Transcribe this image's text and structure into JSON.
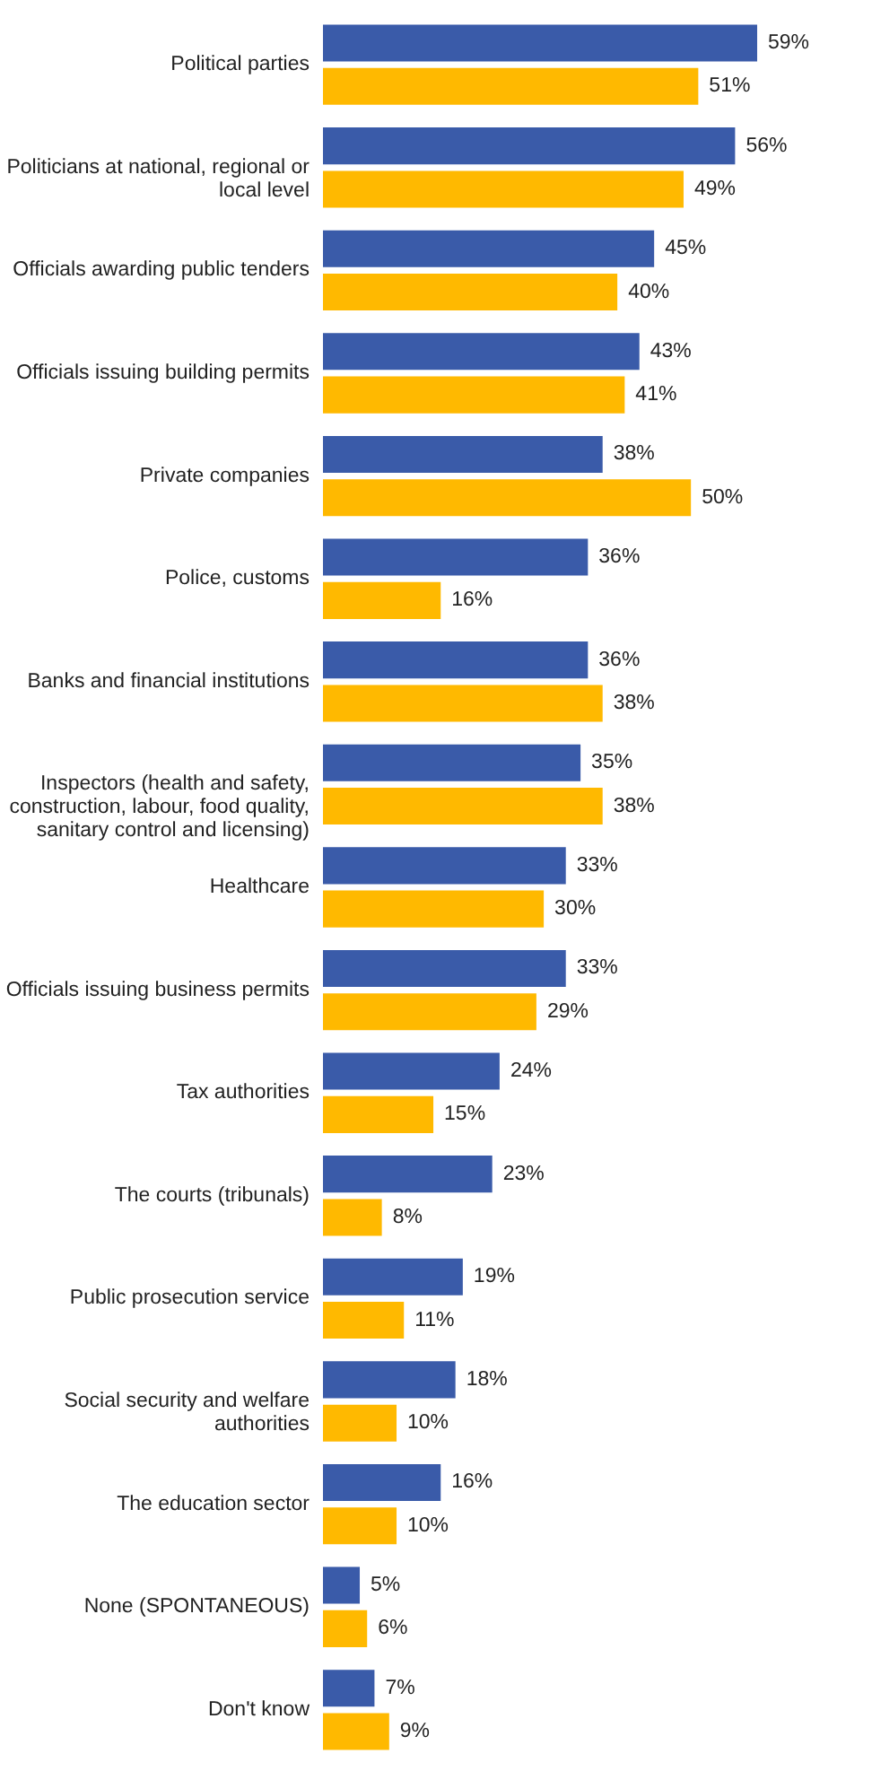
{
  "chart_data": {
    "type": "bar",
    "orientation": "horizontal",
    "categories": [
      "Political parties",
      "Politicians at national, regional or local level",
      "Officials awarding public tenders",
      "Officials issuing building permits",
      "Private companies",
      "Police, customs",
      "Banks and financial institutions",
      "Inspectors (health and safety, construction, labour, food quality, sanitary control and licensing)",
      "Healthcare",
      "Officials issuing business permits",
      "Tax authorities",
      "The courts (tribunals)",
      "Public prosecution service",
      "Social security and welfare authorities",
      "The education sector",
      "None (SPONTANEOUS)",
      "Don't know"
    ],
    "series": [
      {
        "color": "#3a5ba9",
        "values": [
          59,
          56,
          45,
          43,
          38,
          36,
          36,
          35,
          33,
          33,
          24,
          23,
          19,
          18,
          16,
          5,
          7
        ],
        "value_labels": [
          "59%",
          "56%",
          "45%",
          "43%",
          "38%",
          "36%",
          "36%",
          "35%",
          "33%",
          "33%",
          "24%",
          "23%",
          "19%",
          "18%",
          "16%",
          "5%",
          "7%"
        ]
      },
      {
        "color": "#ffb900",
        "values": [
          51,
          49,
          40,
          41,
          50,
          16,
          38,
          38,
          30,
          29,
          15,
          8,
          11,
          10,
          10,
          6,
          9
        ],
        "value_labels": [
          "51%",
          "49%",
          "40%",
          "41%",
          "50%",
          "16%",
          "38%",
          "38%",
          "30%",
          "29%",
          "15%",
          "8%",
          "11%",
          "10%",
          "10%",
          "6%",
          "9%"
        ]
      }
    ]
  }
}
